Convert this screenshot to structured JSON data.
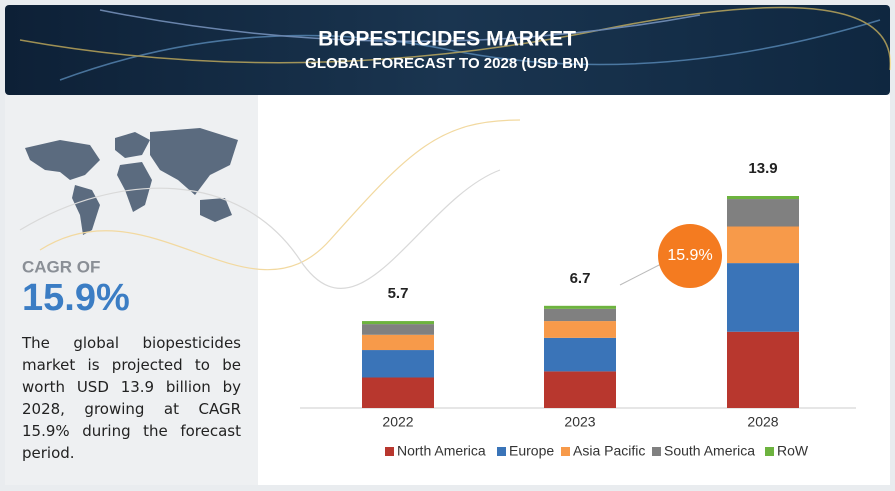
{
  "header": {
    "title": "BIOPESTICIDES MARKET",
    "subtitle": "GLOBAL FORECAST TO 2028 (USD BN)"
  },
  "sidebar": {
    "cagr_label": "CAGR OF",
    "cagr_value": "15.9%",
    "description": "The global biopesticides market is projected to be worth USD 13.9 billion by 2028, growing at CAGR 15.9% during the forecast period."
  },
  "chart_data": {
    "type": "bar",
    "stacked": true,
    "categories": [
      "2022",
      "2023",
      "2028"
    ],
    "totals": [
      5.7,
      6.7,
      13.9
    ],
    "annotation": "15.9%",
    "series": [
      {
        "name": "North America",
        "color": "#b8372e",
        "values": [
          2.0,
          2.4,
          5.0
        ]
      },
      {
        "name": "Europe",
        "color": "#3a74b8",
        "values": [
          1.8,
          2.2,
          4.5
        ]
      },
      {
        "name": "Asia Pacific",
        "color": "#f79a4a",
        "values": [
          1.0,
          1.1,
          2.4
        ]
      },
      {
        "name": "South America",
        "color": "#808080",
        "values": [
          0.7,
          0.8,
          1.8
        ]
      },
      {
        "name": "RoW",
        "color": "#6db33f",
        "values": [
          0.2,
          0.2,
          0.2
        ]
      }
    ]
  }
}
